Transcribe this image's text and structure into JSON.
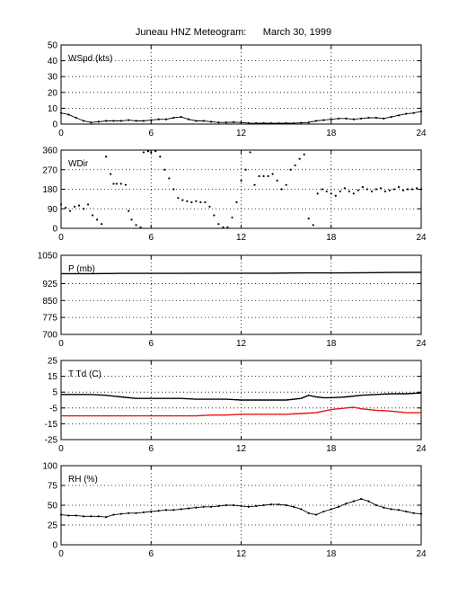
{
  "title": "Juneau HNZ Meteogram:      March 30, 1999",
  "colors": {
    "black": "#000000",
    "dewpoint": "#ee1111",
    "grid": "#000000"
  },
  "chart_data": [
    {
      "type": "scatter",
      "label": "WSpd (kts)",
      "x_ticks": [
        0,
        6,
        12,
        18,
        24
      ],
      "y_ticks": [
        0,
        10,
        20,
        30,
        40,
        50
      ],
      "xlim": [
        0,
        24
      ],
      "ylim": [
        0,
        50
      ],
      "grid": true,
      "series": [
        {
          "color": "#000000",
          "style": "dots",
          "x": [
            0,
            0.5,
            1,
            1.5,
            2,
            2.5,
            3,
            3.5,
            4,
            4.5,
            5,
            5.5,
            6,
            6.5,
            7,
            7.5,
            8,
            8.5,
            9,
            9.5,
            10,
            10.5,
            11,
            11.5,
            12,
            12.5,
            13,
            13.5,
            14,
            14.5,
            15,
            15.5,
            16,
            16.5,
            17,
            17.5,
            18,
            18.5,
            19,
            19.5,
            20,
            20.5,
            21,
            21.5,
            22,
            22.5,
            23,
            23.5,
            24
          ],
          "values": [
            7,
            6,
            4,
            2,
            1,
            1.5,
            2,
            2,
            2,
            2.5,
            2,
            2,
            2.5,
            3,
            3,
            4,
            4.5,
            3,
            2,
            2,
            1.5,
            1,
            1,
            1.2,
            1,
            0.6,
            0.5,
            0.6,
            0.5,
            0.5,
            0.6,
            0.5,
            0.8,
            1,
            2,
            2.5,
            3,
            3.5,
            3.5,
            3,
            3.5,
            4,
            4,
            3.5,
            4.5,
            5.5,
            6.5,
            7,
            8
          ]
        }
      ]
    },
    {
      "type": "scatter",
      "label": "WDir",
      "x_ticks": [
        0,
        6,
        12,
        18,
        24
      ],
      "y_ticks": [
        0,
        90,
        180,
        270,
        360
      ],
      "xlim": [
        0,
        24
      ],
      "ylim": [
        0,
        360
      ],
      "grid": true,
      "series": [
        {
          "color": "#000000",
          "style": "dots",
          "x": [
            0,
            0.3,
            0.6,
            0.9,
            1.2,
            1.5,
            1.8,
            2.1,
            2.4,
            2.7,
            3.0,
            3.3,
            3.5,
            3.7,
            4.0,
            4.3,
            4.5,
            4.7,
            5.0,
            5.3,
            5.5,
            5.8,
            6.0,
            6.3,
            6.6,
            6.9,
            7.2,
            7.5,
            7.8,
            8.1,
            8.4,
            8.7,
            9.0,
            9.3,
            9.6,
            9.9,
            10.2,
            10.5,
            10.8,
            11.1,
            11.4,
            11.7,
            12.0,
            12.3,
            12.6,
            12.9,
            13.2,
            13.5,
            13.8,
            14.1,
            14.4,
            14.7,
            15.0,
            15.3,
            15.6,
            15.9,
            16.2,
            16.5,
            16.8,
            17.1,
            17.4,
            17.7,
            18.0,
            18.3,
            18.6,
            18.9,
            19.2,
            19.5,
            19.8,
            20.1,
            20.4,
            20.7,
            21.0,
            21.3,
            21.6,
            21.9,
            22.2,
            22.5,
            22.8,
            23.1,
            23.4,
            23.7,
            24.0
          ],
          "values": [
            110,
            95,
            80,
            100,
            105,
            90,
            110,
            60,
            40,
            20,
            330,
            250,
            205,
            205,
            205,
            200,
            80,
            40,
            15,
            5,
            350,
            355,
            350,
            355,
            330,
            270,
            230,
            180,
            140,
            130,
            125,
            120,
            125,
            120,
            120,
            100,
            60,
            20,
            5,
            5,
            50,
            120,
            220,
            270,
            350,
            200,
            240,
            240,
            240,
            250,
            220,
            180,
            200,
            270,
            290,
            320,
            340,
            45,
            15,
            160,
            180,
            170,
            160,
            150,
            170,
            185,
            170,
            160,
            175,
            190,
            180,
            170,
            180,
            185,
            170,
            175,
            180,
            190,
            175,
            180,
            180,
            185,
            180
          ]
        }
      ]
    },
    {
      "type": "line",
      "label": "P (mb)",
      "x_ticks": [
        0,
        6,
        12,
        18,
        24
      ],
      "y_ticks": [
        700,
        775,
        850,
        925,
        1050
      ],
      "xlim": [
        0,
        24
      ],
      "ylim": [
        700,
        1050
      ],
      "grid": true,
      "series": [
        {
          "color": "#000000",
          "style": "line",
          "x": [
            0,
            2,
            4,
            6,
            8,
            10,
            12,
            14,
            16,
            18,
            20,
            22,
            24
          ],
          "values": [
            969,
            969,
            970,
            970,
            970,
            971,
            971,
            971,
            972,
            972,
            973,
            974,
            975
          ]
        }
      ]
    },
    {
      "type": "line",
      "label": "T Td (C)",
      "x_ticks": [
        0,
        6,
        12,
        18,
        24
      ],
      "y_ticks": [
        -25,
        -15,
        -5,
        5,
        15,
        25
      ],
      "xlim": [
        0,
        24
      ],
      "ylim": [
        -25,
        25
      ],
      "grid": true,
      "series": [
        {
          "color": "#000000",
          "style": "line",
          "x": [
            0,
            1,
            2,
            3,
            4,
            5,
            6,
            7,
            8,
            9,
            10,
            11,
            12,
            13,
            14,
            15,
            16,
            16.5,
            17,
            17.5,
            18,
            19,
            20,
            21,
            22,
            23,
            24
          ],
          "values": [
            3.5,
            3.5,
            3.5,
            3,
            2,
            1,
            1,
            1,
            1,
            0.5,
            0.5,
            0.5,
            0,
            0,
            0,
            0,
            1,
            3,
            2,
            1.5,
            1.5,
            2,
            3,
            3.5,
            4,
            4,
            4.5
          ]
        },
        {
          "color": "#ee1111",
          "style": "line",
          "x": [
            0,
            1,
            2,
            3,
            4,
            5,
            6,
            7,
            8,
            9,
            10,
            11,
            12,
            13,
            14,
            15,
            16,
            17,
            17.5,
            18,
            18.5,
            19,
            19.5,
            20,
            21,
            22,
            23,
            24
          ],
          "values": [
            -10,
            -10,
            -10,
            -10,
            -10,
            -10,
            -10,
            -10,
            -10,
            -10,
            -9.5,
            -9.5,
            -9,
            -9,
            -9,
            -9,
            -8.5,
            -8,
            -7,
            -6,
            -5.5,
            -5,
            -4.5,
            -5.5,
            -6.5,
            -7,
            -8,
            -8
          ]
        }
      ]
    },
    {
      "type": "scatter",
      "label": "RH (%)",
      "x_ticks": [
        0,
        6,
        12,
        18,
        24
      ],
      "y_ticks": [
        0,
        25,
        50,
        75,
        100
      ],
      "xlim": [
        0,
        24
      ],
      "ylim": [
        0,
        100
      ],
      "grid": true,
      "series": [
        {
          "color": "#000000",
          "style": "dots",
          "x": [
            0,
            0.5,
            1,
            1.5,
            2,
            2.5,
            3,
            3.5,
            4,
            4.5,
            5,
            5.5,
            6,
            6.5,
            7,
            7.5,
            8,
            8.5,
            9,
            9.5,
            10,
            10.5,
            11,
            11.5,
            12,
            12.5,
            13,
            13.5,
            14,
            14.5,
            15,
            15.5,
            16,
            16.5,
            17,
            17.5,
            18,
            18.5,
            19,
            19.5,
            20,
            20.5,
            21,
            21.5,
            22,
            22.5,
            23,
            23.5,
            24
          ],
          "values": [
            38,
            37,
            37,
            36,
            36,
            36,
            35,
            38,
            39,
            40,
            40,
            41,
            42,
            43,
            44,
            44,
            45,
            46,
            47,
            48,
            48,
            49,
            50,
            50,
            49,
            48,
            49,
            50,
            51,
            51,
            50,
            48,
            45,
            40,
            38,
            42,
            45,
            48,
            52,
            55,
            58,
            55,
            50,
            47,
            45,
            44,
            42,
            40,
            39
          ]
        }
      ]
    }
  ]
}
